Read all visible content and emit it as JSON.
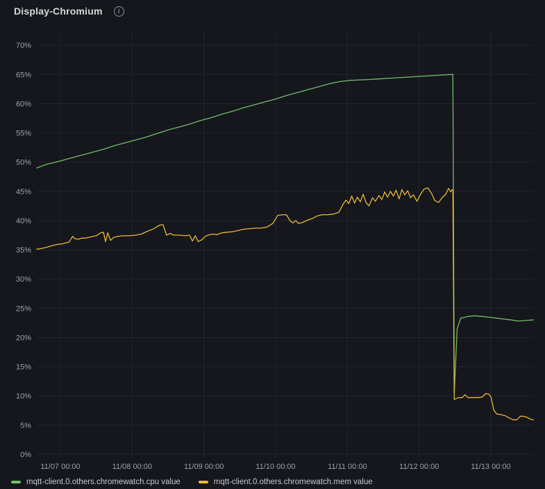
{
  "panel": {
    "title": "Display-Chromium",
    "info_icon_glyph": "i"
  },
  "chart_data": {
    "type": "line",
    "title": "Display-Chromium",
    "xlabel": "",
    "ylabel": "",
    "x_unit": "days since 11/07 00:00",
    "x_range": [
      -0.329,
      6.59
    ],
    "y_range": [
      0,
      72.4
    ],
    "grid": true,
    "legend_position": "bottom",
    "x_ticks": [
      {
        "t": 0,
        "label": "11/07 00:00"
      },
      {
        "t": 1,
        "label": "11/08 00:00"
      },
      {
        "t": 2,
        "label": "11/09 00:00"
      },
      {
        "t": 3,
        "label": "11/10 00:00"
      },
      {
        "t": 4,
        "label": "11/11 00:00"
      },
      {
        "t": 5,
        "label": "11/12 00:00"
      },
      {
        "t": 6,
        "label": "11/13 00:00"
      }
    ],
    "y_ticks": [
      {
        "v": 0,
        "label": "0%"
      },
      {
        "v": 5,
        "label": "5%"
      },
      {
        "v": 10,
        "label": "10%"
      },
      {
        "v": 15,
        "label": "15%"
      },
      {
        "v": 20,
        "label": "20%"
      },
      {
        "v": 25,
        "label": "25%"
      },
      {
        "v": 30,
        "label": "30%"
      },
      {
        "v": 35,
        "label": "35%"
      },
      {
        "v": 40,
        "label": "40%"
      },
      {
        "v": 45,
        "label": "45%"
      },
      {
        "v": 50,
        "label": "50%"
      },
      {
        "v": 55,
        "label": "55%"
      },
      {
        "v": 60,
        "label": "60%"
      },
      {
        "v": 65,
        "label": "65%"
      },
      {
        "v": 70,
        "label": "70%"
      }
    ],
    "series": [
      {
        "name": "mqtt-client.0.others.chromewatch.cpu value",
        "color": "#73BF69",
        "points": [
          [
            -0.33,
            49.0
          ],
          [
            -0.2,
            49.6
          ],
          [
            -0.1,
            49.9
          ],
          [
            0,
            50.2
          ],
          [
            0.15,
            50.7
          ],
          [
            0.3,
            51.2
          ],
          [
            0.45,
            51.7
          ],
          [
            0.6,
            52.2
          ],
          [
            0.75,
            52.8
          ],
          [
            0.9,
            53.3
          ],
          [
            1.05,
            53.8
          ],
          [
            1.2,
            54.3
          ],
          [
            1.35,
            54.9
          ],
          [
            1.5,
            55.5
          ],
          [
            1.65,
            56.0
          ],
          [
            1.8,
            56.5
          ],
          [
            1.95,
            57.1
          ],
          [
            2.1,
            57.6
          ],
          [
            2.25,
            58.2
          ],
          [
            2.4,
            58.7
          ],
          [
            2.55,
            59.3
          ],
          [
            2.7,
            59.8
          ],
          [
            2.85,
            60.3
          ],
          [
            3.0,
            60.8
          ],
          [
            3.15,
            61.4
          ],
          [
            3.3,
            61.9
          ],
          [
            3.45,
            62.4
          ],
          [
            3.6,
            62.9
          ],
          [
            3.75,
            63.4
          ],
          [
            3.9,
            63.8
          ],
          [
            4.05,
            64.0
          ],
          [
            4.25,
            64.1
          ],
          [
            4.45,
            64.25
          ],
          [
            4.65,
            64.4
          ],
          [
            4.85,
            64.55
          ],
          [
            5.05,
            64.7
          ],
          [
            5.25,
            64.85
          ],
          [
            5.45,
            65.0
          ],
          [
            5.47,
            65.0
          ],
          [
            5.49,
            10.5
          ],
          [
            5.53,
            21.5
          ],
          [
            5.58,
            23.3
          ],
          [
            5.68,
            23.6
          ],
          [
            5.78,
            23.7
          ],
          [
            5.88,
            23.6
          ],
          [
            5.98,
            23.45
          ],
          [
            6.08,
            23.3
          ],
          [
            6.18,
            23.15
          ],
          [
            6.28,
            23.0
          ],
          [
            6.38,
            22.8
          ],
          [
            6.48,
            22.9
          ],
          [
            6.59,
            23.0
          ]
        ]
      },
      {
        "name": "mqtt-client.0.others.chromewatch.mem value",
        "color": "#EAB839",
        "points": [
          [
            -0.33,
            35.1
          ],
          [
            -0.27,
            35.2
          ],
          [
            -0.2,
            35.4
          ],
          [
            -0.12,
            35.7
          ],
          [
            -0.05,
            35.9
          ],
          [
            0.02,
            36.0
          ],
          [
            0.08,
            36.2
          ],
          [
            0.12,
            36.3
          ],
          [
            0.17,
            37.3
          ],
          [
            0.2,
            36.9
          ],
          [
            0.25,
            36.8
          ],
          [
            0.3,
            37.0
          ],
          [
            0.35,
            37.0
          ],
          [
            0.42,
            37.2
          ],
          [
            0.5,
            37.4
          ],
          [
            0.56,
            37.9
          ],
          [
            0.6,
            38.0
          ],
          [
            0.63,
            36.4
          ],
          [
            0.66,
            37.9
          ],
          [
            0.7,
            36.6
          ],
          [
            0.74,
            37.1
          ],
          [
            0.8,
            37.3
          ],
          [
            0.88,
            37.4
          ],
          [
            0.96,
            37.4
          ],
          [
            1.05,
            37.5
          ],
          [
            1.13,
            37.7
          ],
          [
            1.2,
            38.1
          ],
          [
            1.3,
            38.6
          ],
          [
            1.38,
            39.2
          ],
          [
            1.43,
            39.3
          ],
          [
            1.48,
            37.5
          ],
          [
            1.53,
            37.8
          ],
          [
            1.58,
            37.5
          ],
          [
            1.66,
            37.5
          ],
          [
            1.74,
            37.4
          ],
          [
            1.8,
            37.5
          ],
          [
            1.84,
            36.5
          ],
          [
            1.88,
            37.4
          ],
          [
            1.92,
            36.4
          ],
          [
            1.97,
            36.7
          ],
          [
            2.02,
            37.3
          ],
          [
            2.06,
            37.5
          ],
          [
            2.12,
            37.7
          ],
          [
            2.18,
            37.6
          ],
          [
            2.25,
            37.9
          ],
          [
            2.32,
            38.0
          ],
          [
            2.4,
            38.1
          ],
          [
            2.48,
            38.3
          ],
          [
            2.55,
            38.5
          ],
          [
            2.62,
            38.6
          ],
          [
            2.72,
            38.7
          ],
          [
            2.8,
            38.7
          ],
          [
            2.88,
            38.9
          ],
          [
            2.96,
            39.5
          ],
          [
            3.03,
            40.9
          ],
          [
            3.1,
            41.0
          ],
          [
            3.15,
            41.0
          ],
          [
            3.2,
            40.0
          ],
          [
            3.24,
            39.6
          ],
          [
            3.28,
            40.0
          ],
          [
            3.32,
            39.5
          ],
          [
            3.38,
            39.7
          ],
          [
            3.45,
            40.1
          ],
          [
            3.52,
            40.4
          ],
          [
            3.58,
            40.8
          ],
          [
            3.65,
            41.0
          ],
          [
            3.72,
            41.0
          ],
          [
            3.8,
            41.1
          ],
          [
            3.88,
            41.4
          ],
          [
            3.94,
            42.8
          ],
          [
            3.98,
            43.5
          ],
          [
            4.02,
            42.9
          ],
          [
            4.06,
            44.2
          ],
          [
            4.1,
            43.0
          ],
          [
            4.14,
            44.0
          ],
          [
            4.18,
            43.2
          ],
          [
            4.22,
            44.5
          ],
          [
            4.26,
            43.1
          ],
          [
            4.3,
            42.5
          ],
          [
            4.35,
            43.9
          ],
          [
            4.39,
            43.3
          ],
          [
            4.44,
            44.3
          ],
          [
            4.48,
            43.6
          ],
          [
            4.52,
            44.9
          ],
          [
            4.56,
            44.0
          ],
          [
            4.6,
            45.0
          ],
          [
            4.64,
            44.2
          ],
          [
            4.68,
            45.2
          ],
          [
            4.72,
            43.7
          ],
          [
            4.76,
            45.3
          ],
          [
            4.8,
            44.4
          ],
          [
            4.84,
            45.1
          ],
          [
            4.88,
            43.9
          ],
          [
            4.92,
            44.4
          ],
          [
            4.97,
            43.3
          ],
          [
            5.02,
            44.5
          ],
          [
            5.07,
            45.4
          ],
          [
            5.12,
            45.6
          ],
          [
            5.17,
            44.7
          ],
          [
            5.22,
            43.4
          ],
          [
            5.27,
            43.1
          ],
          [
            5.32,
            43.9
          ],
          [
            5.37,
            44.5
          ],
          [
            5.41,
            45.5
          ],
          [
            5.44,
            44.9
          ],
          [
            5.46,
            45.3
          ],
          [
            5.47,
            45.2
          ],
          [
            5.49,
            9.4
          ],
          [
            5.55,
            9.7
          ],
          [
            5.6,
            9.7
          ],
          [
            5.64,
            10.2
          ],
          [
            5.68,
            9.7
          ],
          [
            5.75,
            9.7
          ],
          [
            5.82,
            9.7
          ],
          [
            5.88,
            9.8
          ],
          [
            5.93,
            10.4
          ],
          [
            5.97,
            10.3
          ],
          [
            6.0,
            9.9
          ],
          [
            6.04,
            7.6
          ],
          [
            6.08,
            6.9
          ],
          [
            6.14,
            6.8
          ],
          [
            6.2,
            6.6
          ],
          [
            6.26,
            6.2
          ],
          [
            6.31,
            5.9
          ],
          [
            6.36,
            5.9
          ],
          [
            6.41,
            6.5
          ],
          [
            6.46,
            6.5
          ],
          [
            6.51,
            6.3
          ],
          [
            6.55,
            6.0
          ],
          [
            6.59,
            5.9
          ]
        ]
      }
    ]
  },
  "colors": {
    "cpu_series": "#73BF69",
    "mem_series": "#EAB839"
  }
}
